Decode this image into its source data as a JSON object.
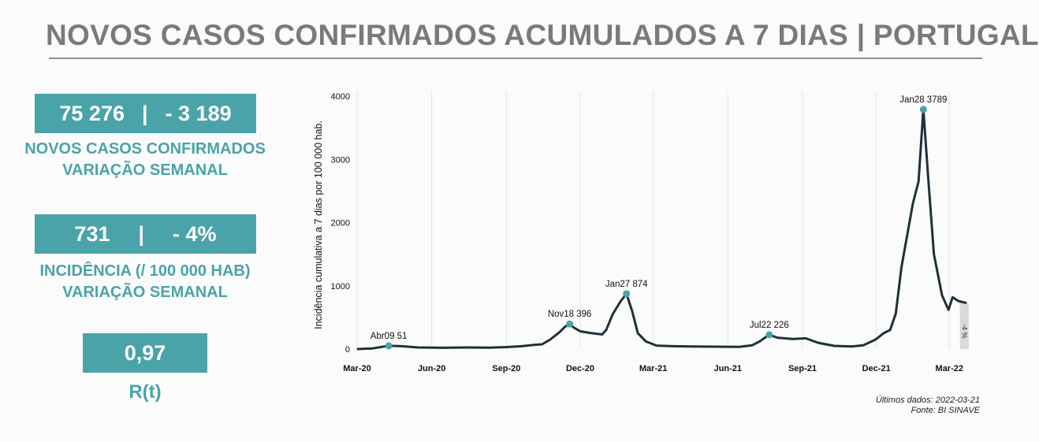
{
  "header": {
    "title": "NOVOS CASOS CONFIRMADOS ACUMULADOS A 7 DIAS | PORTUGAL"
  },
  "stats": {
    "cases": {
      "value": "75 276",
      "sep": "|",
      "change": "- 3 189",
      "label1": "NOVOS CASOS CONFIRMADOS",
      "label2": "VARIAÇÃO SEMANAL"
    },
    "incidence": {
      "value": "731",
      "sep": "|",
      "change": "- 4%",
      "label1": "INCIDÊNCIA (/ 100 000 HAB)",
      "label2": "VARIAÇÃO SEMANAL"
    },
    "rt": {
      "value": "0,97",
      "label": "R(t)"
    }
  },
  "footer": {
    "last_data": "Últimos dados: 2022-03-21",
    "source": "Fonte: BI SINAVE"
  },
  "colors": {
    "accent": "#4aa3a8",
    "line": "#1e3038",
    "title": "#7a7a7a"
  },
  "chart_data": {
    "type": "line",
    "title": "",
    "xlabel": "",
    "ylabel": "Incidência cumulativa a 7 dias por 100 000 hab.",
    "ylim": [
      0,
      4000
    ],
    "yticks": [
      0,
      1000,
      2000,
      3000,
      4000
    ],
    "xlim": [
      "2020-03-01",
      "2022-03-26"
    ],
    "xticks": [
      {
        "date": "2020-03-01",
        "label": "Mar-20"
      },
      {
        "date": "2020-06-01",
        "label": "Jun-20"
      },
      {
        "date": "2020-09-01",
        "label": "Sep-20"
      },
      {
        "date": "2020-12-01",
        "label": "Dec-20"
      },
      {
        "date": "2021-03-01",
        "label": "Mar-21"
      },
      {
        "date": "2021-06-01",
        "label": "Jun-21"
      },
      {
        "date": "2021-09-01",
        "label": "Sep-21"
      },
      {
        "date": "2021-12-01",
        "label": "Dec-21"
      },
      {
        "date": "2022-03-01",
        "label": "Mar-22"
      }
    ],
    "grid": "vertical",
    "series": [
      {
        "x": [
          "2020-03-02",
          "2020-03-20",
          "2020-04-09",
          "2020-04-25",
          "2020-05-15",
          "2020-06-15",
          "2020-07-15",
          "2020-08-10",
          "2020-08-31",
          "2020-09-20",
          "2020-10-05",
          "2020-10-15",
          "2020-10-25",
          "2020-11-05",
          "2020-11-12",
          "2020-11-18",
          "2020-11-23",
          "2020-12-01",
          "2020-12-15",
          "2020-12-28",
          "2021-01-02",
          "2021-01-10",
          "2021-01-20",
          "2021-01-27",
          "2021-02-03",
          "2021-02-10",
          "2021-02-20",
          "2021-03-05",
          "2021-03-25",
          "2021-04-15",
          "2021-05-15",
          "2021-06-15",
          "2021-07-01",
          "2021-07-10",
          "2021-07-22",
          "2021-08-01",
          "2021-08-20",
          "2021-09-05",
          "2021-09-20",
          "2021-10-10",
          "2021-11-01",
          "2021-11-15",
          "2021-11-30",
          "2021-12-10",
          "2021-12-18",
          "2021-12-25",
          "2022-01-01",
          "2022-01-08",
          "2022-01-15",
          "2022-01-22",
          "2022-01-28",
          "2022-02-03",
          "2022-02-10",
          "2022-02-20",
          "2022-02-28",
          "2022-03-05",
          "2022-03-12",
          "2022-03-21"
        ],
        "y": [
          0,
          10,
          51,
          45,
          25,
          20,
          25,
          22,
          30,
          45,
          65,
          75,
          150,
          260,
          350,
          396,
          340,
          280,
          250,
          230,
          300,
          550,
          760,
          874,
          600,
          250,
          120,
          55,
          45,
          40,
          38,
          35,
          60,
          120,
          226,
          180,
          160,
          170,
          100,
          50,
          40,
          60,
          150,
          250,
          300,
          560,
          1300,
          1800,
          2300,
          2650,
          3789,
          2700,
          1500,
          850,
          620,
          820,
          760,
          731
        ]
      }
    ],
    "annotations": [
      {
        "date": "2020-04-09",
        "value": 51,
        "label": "Abr09 51"
      },
      {
        "date": "2020-11-18",
        "value": 396,
        "label": "Nov18 396"
      },
      {
        "date": "2021-01-27",
        "value": 874,
        "label": "Jan27 874"
      },
      {
        "date": "2021-07-22",
        "value": 226,
        "label": "Jul22 226"
      },
      {
        "date": "2022-01-28",
        "value": 3789,
        "label": "Jan28 3789"
      }
    ],
    "change_bar": {
      "start": "2022-03-14",
      "end": "2022-03-21",
      "label": "-4 %"
    }
  }
}
